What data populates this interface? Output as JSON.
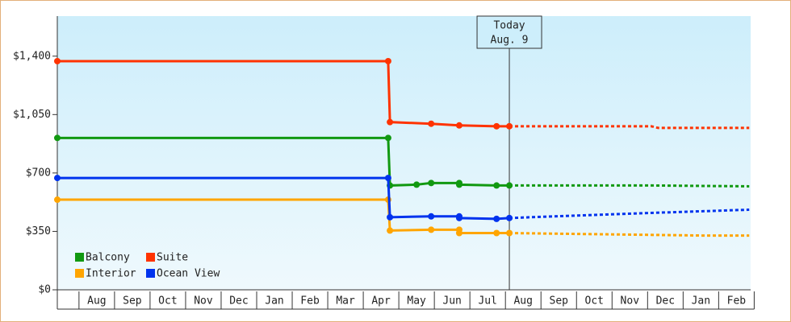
{
  "chart_data": {
    "type": "line",
    "xlim": [
      -0.61,
      18.9
    ],
    "ylim": [
      0,
      1640
    ],
    "yticks": [
      {
        "value": 0,
        "label": "$0"
      },
      {
        "value": 350,
        "label": "$350"
      },
      {
        "value": 700,
        "label": "$700"
      },
      {
        "value": 1050,
        "label": "$1,050"
      },
      {
        "value": 1400,
        "label": "$1,400"
      }
    ],
    "xticks": [
      {
        "value": 0.5,
        "label": "Aug"
      },
      {
        "value": 1.5,
        "label": "Sep"
      },
      {
        "value": 2.5,
        "label": "Oct"
      },
      {
        "value": 3.5,
        "label": "Nov"
      },
      {
        "value": 4.5,
        "label": "Dec"
      },
      {
        "value": 5.5,
        "label": "Jan"
      },
      {
        "value": 6.5,
        "label": "Feb"
      },
      {
        "value": 7.5,
        "label": "Mar"
      },
      {
        "value": 8.5,
        "label": "Apr"
      },
      {
        "value": 9.5,
        "label": "May"
      },
      {
        "value": 10.5,
        "label": "Jun"
      },
      {
        "value": 11.5,
        "label": "Jul"
      },
      {
        "value": 12.5,
        "label": "Aug"
      },
      {
        "value": 13.5,
        "label": "Sep"
      },
      {
        "value": 14.5,
        "label": "Oct"
      },
      {
        "value": 15.5,
        "label": "Nov"
      },
      {
        "value": 16.5,
        "label": "Dec"
      },
      {
        "value": 17.5,
        "label": "Jan"
      },
      {
        "value": 18.5,
        "label": "Feb"
      }
    ],
    "today_label": "Today",
    "today_date": "Aug. 9",
    "today_x": 12.11,
    "series": [
      {
        "name": "Balcony",
        "color": "#119911",
        "x": [
          -0.61,
          8.7,
          8.75,
          9.5,
          9.91,
          10.7,
          10.7,
          11.75,
          12.11
        ],
        "values": [
          910,
          910,
          625,
          630,
          640,
          640,
          630,
          625,
          625
        ],
        "forecast_x": [
          12.11,
          16.2,
          18.86
        ],
        "forecast_values": [
          625,
          625,
          620
        ]
      },
      {
        "name": "Suite",
        "color": "#ff3300",
        "x": [
          -0.61,
          8.7,
          8.75,
          9.91,
          10.7,
          11.75,
          12.11
        ],
        "values": [
          1370,
          1370,
          1005,
          995,
          985,
          980,
          980
        ],
        "forecast_x": [
          12.11,
          16.1,
          16.3,
          18.86
        ],
        "forecast_values": [
          980,
          980,
          970,
          970
        ]
      },
      {
        "name": "Interior",
        "color": "#ffa500",
        "x": [
          -0.61,
          8.7,
          8.75,
          9.91,
          10.7,
          10.7,
          11.75,
          12.11
        ],
        "values": [
          540,
          540,
          355,
          360,
          360,
          340,
          340,
          340
        ],
        "forecast_x": [
          12.11,
          13.9,
          17.6,
          18.86
        ],
        "forecast_values": [
          340,
          335,
          325,
          325
        ]
      },
      {
        "name": "Ocean View",
        "color": "#0033ee",
        "x": [
          -0.61,
          8.7,
          8.75,
          9.91,
          10.7,
          10.7,
          11.75,
          12.11
        ],
        "values": [
          670,
          670,
          435,
          440,
          440,
          430,
          425,
          430
        ],
        "forecast_x": [
          12.11,
          14,
          16,
          18.86
        ],
        "forecast_values": [
          430,
          445,
          460,
          480
        ]
      }
    ]
  }
}
